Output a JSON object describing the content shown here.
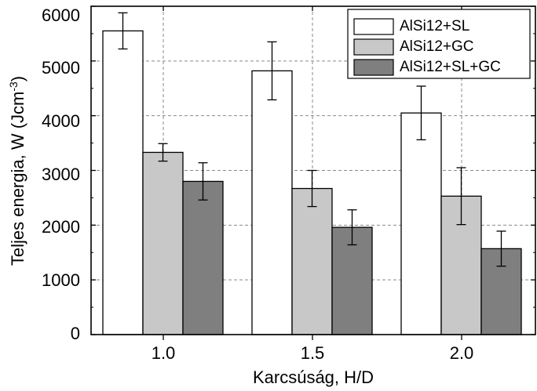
{
  "chart_data": {
    "type": "bar",
    "title": "",
    "xlabel": "Karcsúság, H/D",
    "ylabel": "Teljes energia, W (Jcm",
    "ylabel_sup": "-3",
    "ylabel_close": ")",
    "categories": [
      "1.0",
      "1.5",
      "2.0"
    ],
    "ylim": [
      0,
      6000
    ],
    "yticks": [
      "0",
      "1000",
      "2000",
      "3000",
      "4000",
      "5000",
      "6000"
    ],
    "grid": true,
    "legend_position": "top-right",
    "series": [
      {
        "name": "AlSi12+SL",
        "color": "#ffffff",
        "values": [
          5550,
          4820,
          4050
        ],
        "errors": [
          330,
          530,
          490
        ]
      },
      {
        "name": "AlSi12+GC",
        "color": "#c8c8c8",
        "values": [
          3330,
          2670,
          2530
        ],
        "errors": [
          160,
          330,
          520
        ]
      },
      {
        "name": "AlSi12+SL+GC",
        "color": "#7f7f7f",
        "values": [
          2800,
          1960,
          1570
        ],
        "errors": [
          340,
          320,
          320
        ]
      }
    ]
  }
}
